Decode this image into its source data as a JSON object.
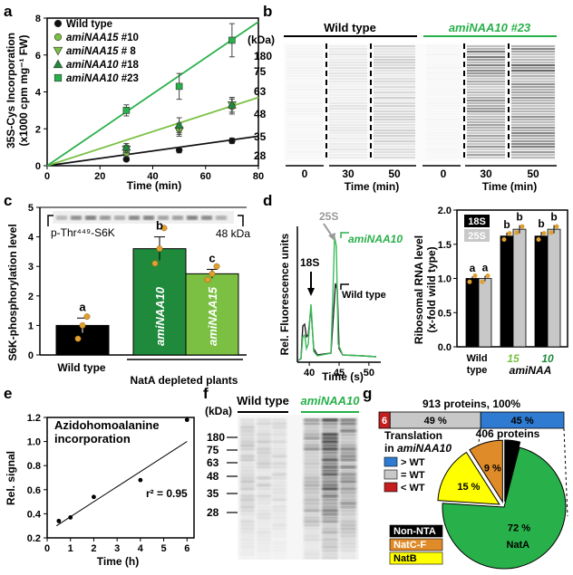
{
  "panels": {
    "a": "a",
    "b": "b",
    "c": "c",
    "d": "d",
    "e": "e",
    "f": "f",
    "g": "g"
  },
  "colors": {
    "dark_green": "#1f8a3c",
    "light_green": "#7bc043",
    "green": "#28b04a",
    "blue": "#2e7bd1",
    "gray": "#c8c8c8",
    "red": "#c41e1e",
    "orange": "#e08b2a",
    "yellow": "#ffff00",
    "gold": "#e0a030"
  },
  "chart_data": [
    {
      "id": "a",
      "type": "scatter",
      "ylabel": "35S-Cys Incorporation",
      "ylabel2": "(x1000 cpm mg⁻¹ FW)",
      "xlabel": "Time (min)",
      "xlim": [
        0,
        80
      ],
      "ylim": [
        0,
        8
      ],
      "xticks": [
        0,
        20,
        40,
        60,
        80
      ],
      "yticks": [
        0,
        2,
        4,
        6,
        8
      ],
      "series": [
        {
          "name": "Wild type",
          "marker": "circle",
          "color": "#111111",
          "x": [
            30,
            50,
            70
          ],
          "y": [
            0.35,
            0.85,
            1.35
          ],
          "err": [
            0.1,
            0.15,
            0.15
          ]
        },
        {
          "name": "amiNAA15 #10",
          "marker": "circle",
          "color": "#7bc043",
          "x": [
            30,
            50,
            70
          ],
          "y": [
            0.7,
            2.0,
            3.2
          ],
          "err": [
            0.2,
            0.3,
            0.4
          ]
        },
        {
          "name": "amiNAA15 # 8",
          "marker": "triangle-down",
          "color": "#7bc043",
          "x": [
            30,
            50,
            70
          ],
          "y": [
            0.9,
            1.9,
            3.3
          ],
          "err": [
            0.2,
            0.3,
            0.4
          ]
        },
        {
          "name": "amiNAA10 #18",
          "marker": "triangle-up",
          "color": "#1f8a3c",
          "x": [
            30,
            50,
            70
          ],
          "y": [
            1.0,
            2.2,
            3.3
          ],
          "err": [
            0.2,
            0.4,
            0.4
          ]
        },
        {
          "name": "amiNAA10 #23",
          "marker": "square",
          "color": "#28b04a",
          "x": [
            30,
            50,
            70
          ],
          "y": [
            3.0,
            4.3,
            6.8
          ],
          "err": [
            0.3,
            0.7,
            0.9
          ]
        }
      ],
      "fits": [
        {
          "color": "#111111",
          "x": [
            0,
            80
          ],
          "y": [
            0,
            1.6
          ]
        },
        {
          "color": "#7bc043",
          "x": [
            0,
            80
          ],
          "y": [
            0,
            3.7
          ]
        },
        {
          "color": "#28b04a",
          "x": [
            0,
            80
          ],
          "y": [
            0,
            7.8
          ]
        }
      ]
    },
    {
      "id": "c",
      "type": "bar",
      "ylabel": "S6K-phosphorylation level",
      "ylim": [
        0,
        5
      ],
      "yticks": [
        0,
        1,
        2,
        3,
        4,
        5
      ],
      "categories": [
        "Wild type",
        "amiNAA10",
        "amiNAA15"
      ],
      "values": [
        1.0,
        3.6,
        2.75
      ],
      "errors": [
        0.25,
        0.4,
        0.15
      ],
      "colors": [
        "#000000",
        "#1f8a3c",
        "#7bc043"
      ],
      "letters": [
        "a",
        "b",
        "c"
      ],
      "points": [
        [
          0.55,
          1.0,
          1.3
        ],
        [
          3.1,
          3.6,
          4.3
        ],
        [
          2.55,
          2.75,
          3.0
        ]
      ],
      "group_label": "NatA depleted plants",
      "blot_label": "p-Thr⁴⁴⁹-S6K",
      "blot_size": "48 kDa"
    },
    {
      "id": "d-trace",
      "type": "line",
      "ylabel": "Rel. Fluorescence units",
      "xlabel": "Time (s)",
      "xlim": [
        38,
        52
      ],
      "xticks": [
        40,
        45,
        50
      ],
      "labels": {
        "p25S": "25S",
        "p18S": "18S",
        "mut": "amiNAA10",
        "wt": "Wild type"
      }
    },
    {
      "id": "d-bar",
      "type": "bar",
      "ylabel": "Ribosomal RNA level",
      "ylabel2": "(x-fold wild type)",
      "ylim": [
        0,
        2.0
      ],
      "yticks": [
        0,
        0.5,
        1.0,
        1.5,
        2.0
      ],
      "categories": [
        "Wild type",
        "15",
        "10"
      ],
      "category_lines": [
        [
          "Wild",
          "type"
        ],
        [
          "15"
        ],
        [
          "10"
        ]
      ],
      "series": [
        {
          "name": "18S",
          "color": "#000000",
          "values": [
            1.0,
            1.62,
            1.62
          ],
          "errors": [
            0.03,
            0.05,
            0.06
          ]
        },
        {
          "name": "25S",
          "color": "#c8c8c8",
          "values": [
            1.0,
            1.72,
            1.72
          ],
          "errors": [
            0.04,
            0.06,
            0.06
          ]
        }
      ],
      "letters": [
        [
          "a",
          "a"
        ],
        [
          "b",
          "b"
        ],
        [
          "b",
          "b"
        ]
      ],
      "sub_label": "amiNAA"
    },
    {
      "id": "e",
      "type": "scatter",
      "title": "Azidohomoalanine",
      "title2": "incorporation",
      "ylabel": "Rel. signal",
      "xlabel": "Time (h)",
      "xlim": [
        0,
        6.3
      ],
      "ylim": [
        0.2,
        1.2
      ],
      "xticks": [
        0,
        1,
        2,
        3,
        4,
        5,
        6
      ],
      "yticks": [
        0.2,
        0.4,
        0.6,
        0.8,
        1.0,
        1.2
      ],
      "x": [
        0.5,
        1,
        2,
        4,
        6
      ],
      "y": [
        0.34,
        0.37,
        0.54,
        0.68,
        1.18
      ],
      "fit": {
        "x": [
          0.4,
          6
        ],
        "y": [
          0.3,
          1.0
        ]
      },
      "r2": "r² = 0.95"
    },
    {
      "id": "g",
      "type": "pie",
      "bar_label": "913 proteins, 100%",
      "bar_segments": [
        {
          "label": "6",
          "value": 6,
          "color": "#c41e1e"
        },
        {
          "label": "49 %",
          "value": 49,
          "color": "#c8c8c8"
        },
        {
          "label": "45 %",
          "value": 45,
          "color": "#2e7bd1"
        }
      ],
      "pie_label": "406 proteins",
      "slices": [
        {
          "label": "72 %",
          "name": "NatA",
          "value": 72,
          "color": "#28b04a"
        },
        {
          "label": "15 %",
          "name": "NatB",
          "value": 15,
          "color": "#ffff00"
        },
        {
          "label": "9 %",
          "name": "NatC-F",
          "value": 9,
          "color": "#e08b2a"
        },
        {
          "label": "",
          "name": "Non-NTA",
          "value": 4,
          "color": "#000000"
        }
      ],
      "legend_title": "Translation",
      "legend_title2": "in amiNAA10",
      "legend": [
        {
          "label": "> WT",
          "color": "#2e7bd1"
        },
        {
          "label": "= WT",
          "color": "#c8c8c8"
        },
        {
          "label": "< WT",
          "color": "#c41e1e"
        }
      ],
      "bottom_legend": [
        {
          "label": "Non-NTA",
          "color": "#000000",
          "text": "#ffffff"
        },
        {
          "label": "NatC-F",
          "color": "#e08b2a",
          "text": "#ffffff"
        },
        {
          "label": "NatB",
          "color": "#ffff00",
          "text": "#000000"
        }
      ]
    }
  ],
  "gel_b": {
    "kda": "(kDa)",
    "markers": [
      "180",
      "75",
      "63",
      "48",
      "35",
      "28"
    ],
    "wt_label": "Wild type",
    "mut_label": "amiNAA10 #23",
    "times": [
      "0",
      "30",
      "50",
      "0",
      "30",
      "50"
    ],
    "xlabel": "Time (min)"
  },
  "gel_f": {
    "kda": "(kDa)",
    "markers": [
      "180",
      "75",
      "63",
      "48",
      "35",
      "28"
    ],
    "wt_label": "Wild type",
    "mut_label": "amiNAA10"
  }
}
